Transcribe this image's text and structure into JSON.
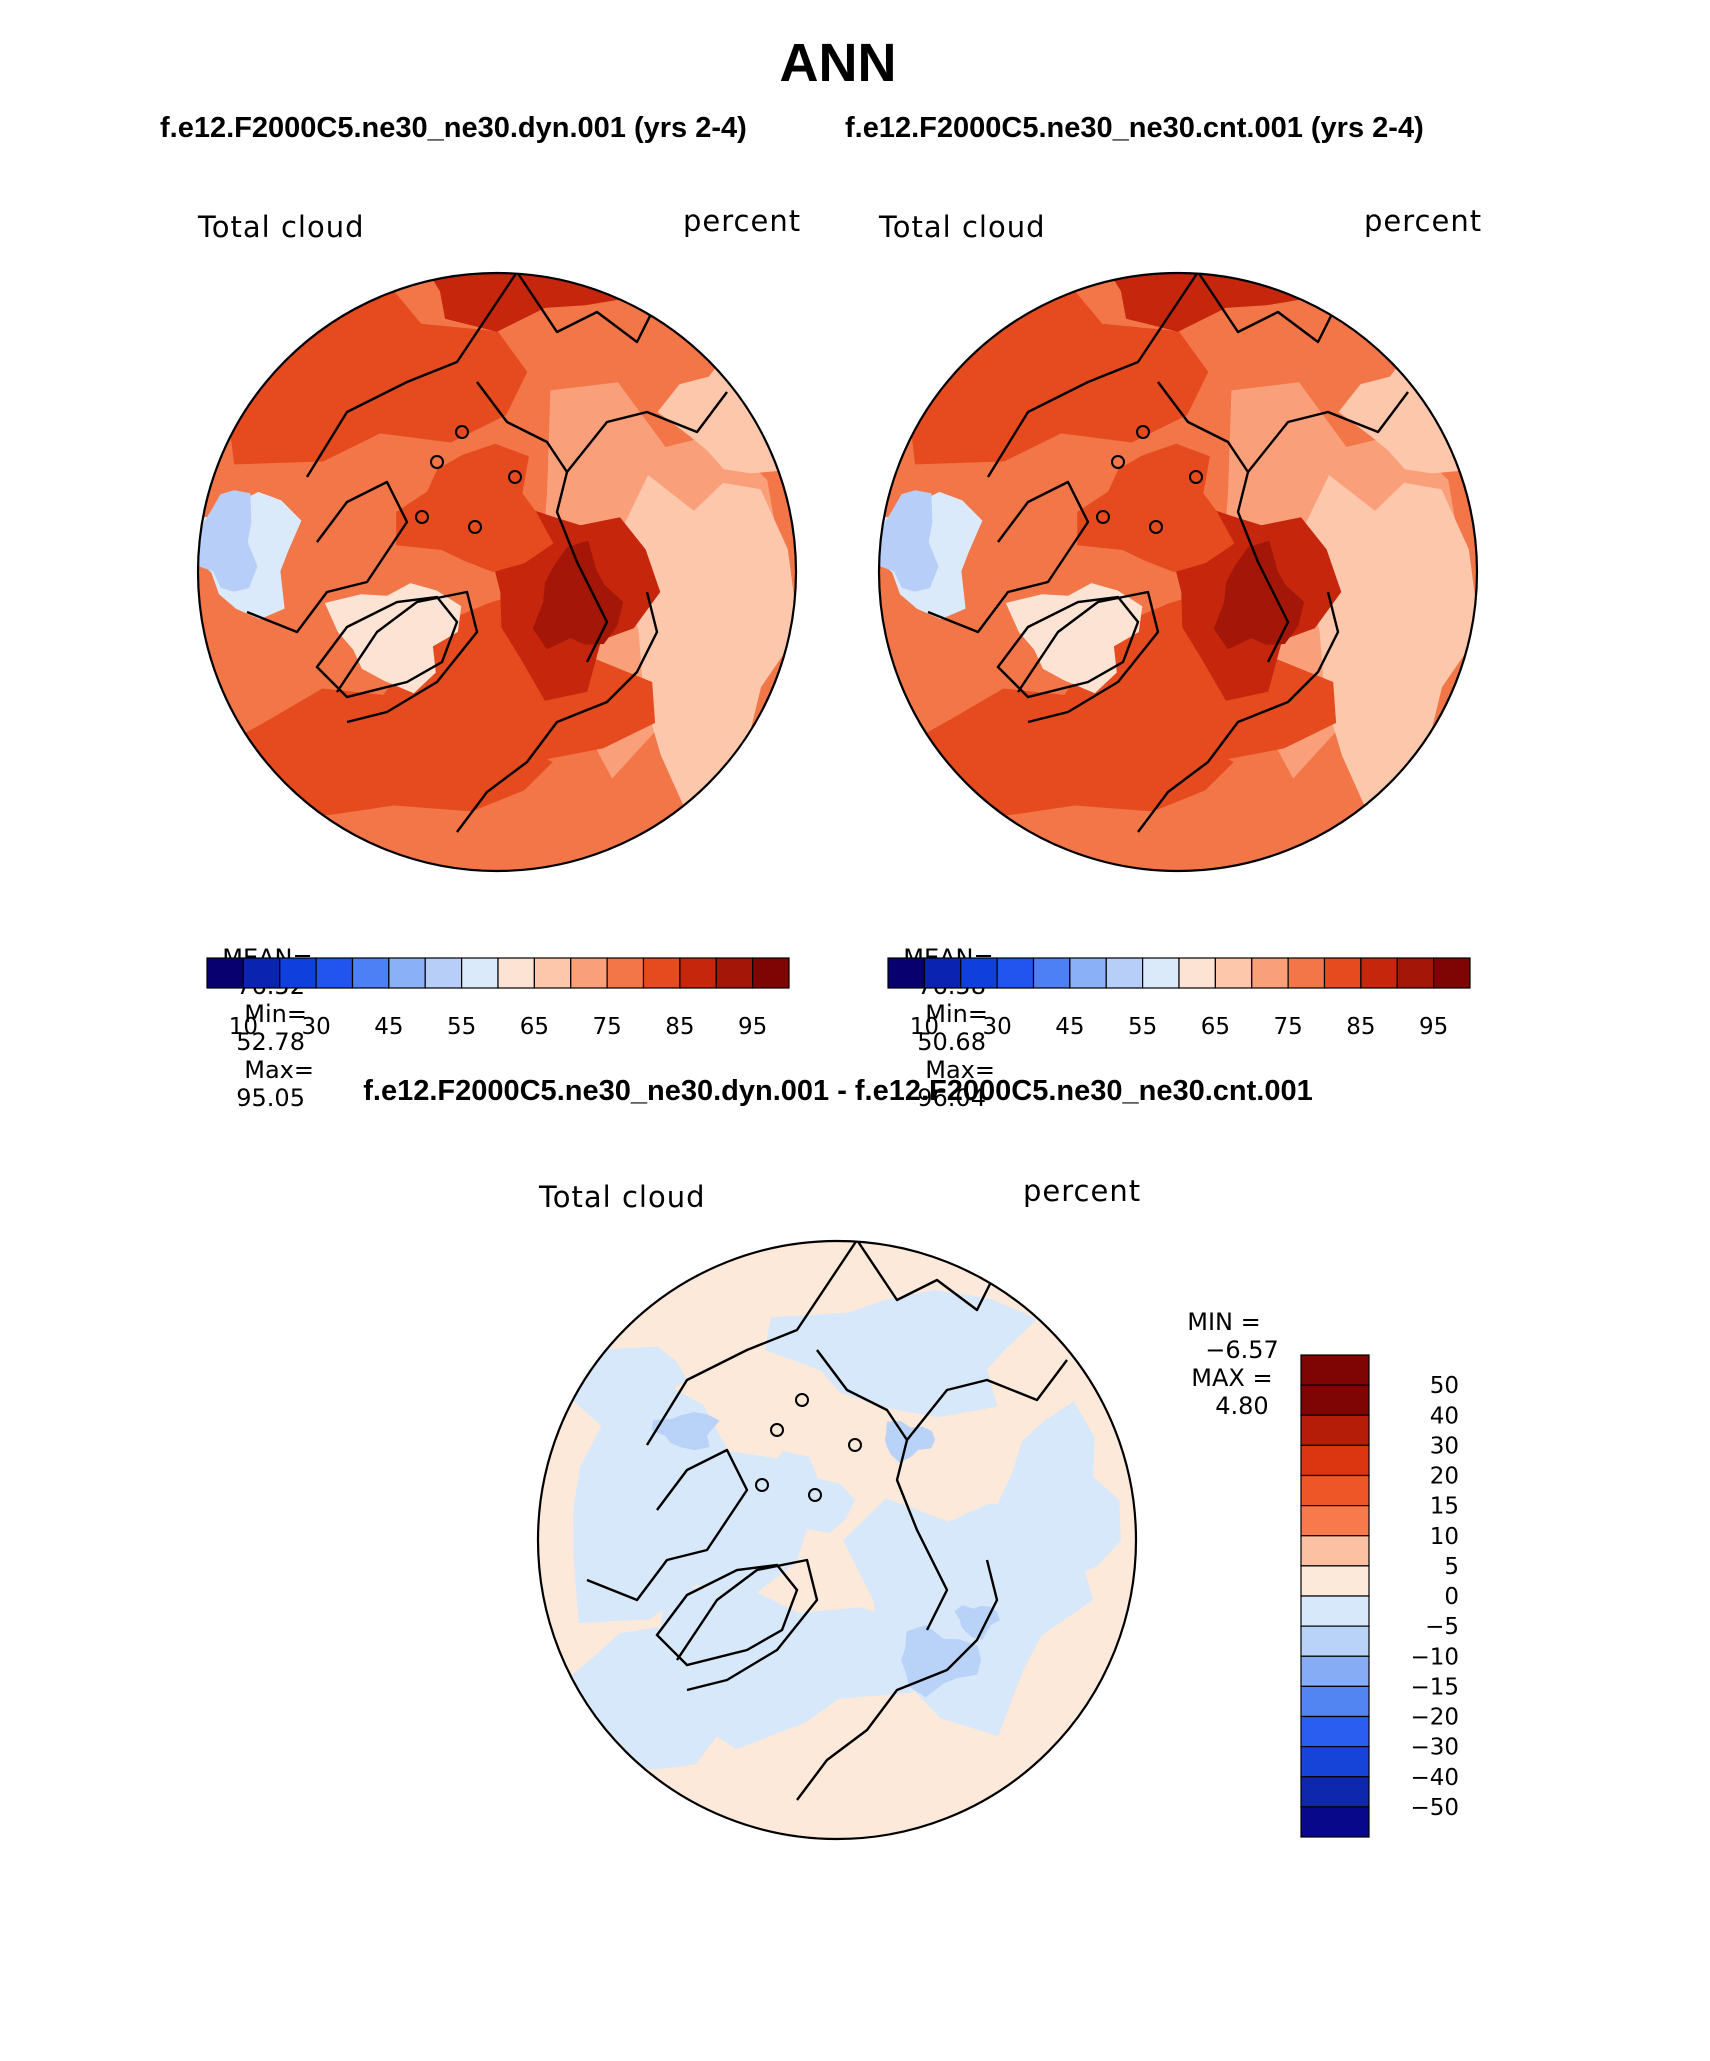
{
  "title": "ANN",
  "run_left": "f.e12.F2000C5.ne30_ne30.dyn.001 (yrs 2-4)",
  "run_right": "f.e12.F2000C5.ne30_ne30.cnt.001 (yrs 2-4)",
  "diff_title": "f.e12.F2000C5.ne30_ne30.dyn.001 - f.e12.F2000C5.ne30_ne30.cnt.001",
  "panels": [
    {
      "variable": "Total cloud",
      "units": "percent",
      "stats": {
        "mean_label": "MEAN=",
        "mean": "76.52",
        "min_label": "Min=",
        "min": "52.78",
        "max_label": "Max=",
        "max": "95.05"
      }
    },
    {
      "variable": "Total cloud",
      "units": "percent",
      "stats": {
        "mean_label": "MEAN=",
        "mean": "76.58",
        "min_label": "Min=",
        "min": "50.68",
        "max_label": "Max=",
        "max": "96.04"
      }
    }
  ],
  "diff_panel": {
    "variable": "Total cloud",
    "units": "percent",
    "min_label": "MIN =",
    "min": "−6.57",
    "max_label": "MAX =",
    "max": "4.80"
  },
  "abs_colorbar": {
    "levels": [
      10,
      20,
      30,
      40,
      45,
      50,
      55,
      60,
      65,
      70,
      75,
      80,
      85,
      90,
      95
    ],
    "tick_labels": [
      "10",
      "30",
      "45",
      "55",
      "65",
      "75",
      "85",
      "95"
    ],
    "colors": [
      "#08006e",
      "#0a23b0",
      "#0f3fdc",
      "#2255f0",
      "#4d7ff5",
      "#8ab0f7",
      "#b7cff8",
      "#dbeafb",
      "#fde3d3",
      "#fdc7ac",
      "#f9a07a",
      "#f27647",
      "#e54b1f",
      "#c5260c",
      "#a31608",
      "#7f0505"
    ]
  },
  "diff_colorbar": {
    "tick_labels": [
      "50",
      "40",
      "30",
      "20",
      "15",
      "10",
      "5",
      "0",
      "−5",
      "−10",
      "−15",
      "−20",
      "−30",
      "−40",
      "−50"
    ],
    "colors": [
      "#7f0505",
      "#b51d09",
      "#db3610",
      "#ee5527",
      "#f7794c",
      "#fcc1a2",
      "#fde9d9",
      "#d7e8fb",
      "#b9d2f8",
      "#87acf6",
      "#5385f2",
      "#2a5ef0",
      "#1744d8",
      "#0d28ad",
      "#07098a"
    ]
  },
  "map_palette": {
    "abs": [
      "#e54b1f",
      "#f27647",
      "#f9a07a",
      "#fdc7ac",
      "#fde3d3",
      "#dbeafb",
      "#b7cff8",
      "#c5260c",
      "#a31608"
    ],
    "diff": [
      "#fde9d9",
      "#d7e8fb",
      "#b9d2f8",
      "#87acf6"
    ]
  }
}
